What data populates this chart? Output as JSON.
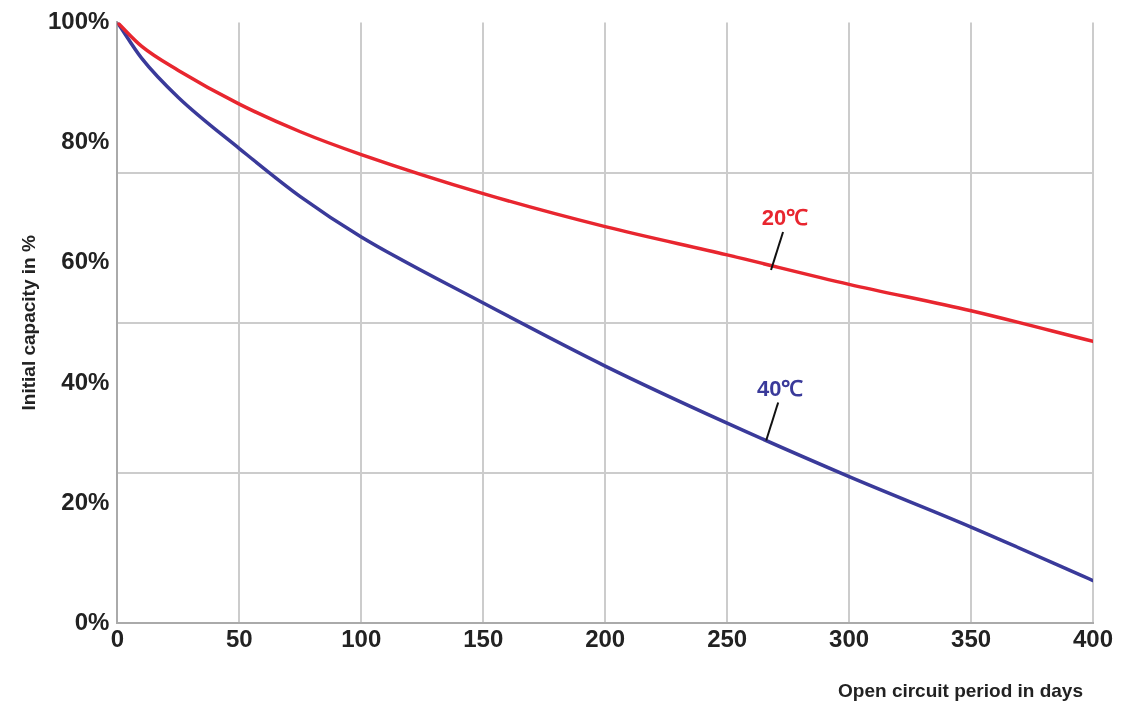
{
  "chart_data": {
    "type": "line",
    "xlabel": "Open circuit period in days",
    "ylabel": "Initial capacity in %",
    "xlim": [
      0,
      400
    ],
    "xticks": [
      0,
      50,
      100,
      150,
      200,
      250,
      300,
      350,
      400
    ],
    "ylim": [
      0,
      100
    ],
    "yticks": [
      {
        "value": 0,
        "label": "0%"
      },
      {
        "value": 20,
        "label": "20%"
      },
      {
        "value": 25,
        "label": null
      },
      {
        "value": 40,
        "label": "40%"
      },
      {
        "value": 50,
        "label": null
      },
      {
        "value": 60,
        "label": "60%"
      },
      {
        "value": 75,
        "label": null
      },
      {
        "value": 80,
        "label": "80%"
      },
      {
        "value": 100,
        "label": "100%"
      }
    ],
    "grid": true,
    "marker": "none",
    "line_style": "solid",
    "series": [
      {
        "color": "#e8262f",
        "x": [
          0,
          10,
          25,
          50,
          75,
          100,
          150,
          200,
          250,
          300,
          350,
          400
        ],
        "values": [
          100,
          96,
          92,
          86.4,
          81.8,
          78,
          71.5,
          66,
          61.3,
          56.4,
          52,
          46.9
        ]
      },
      {
        "color": "#3a3a9a",
        "x": [
          0,
          10,
          25,
          50,
          75,
          100,
          150,
          200,
          250,
          300,
          350,
          400
        ],
        "values": [
          100,
          94,
          87.5,
          79,
          71,
          64.3,
          53.3,
          42.8,
          33.3,
          24.4,
          16,
          7.1
        ]
      }
    ],
    "annotations": [
      {
        "text": "20℃",
        "x": 268,
        "y": 58.8
      },
      {
        "text": "40℃",
        "x": 266,
        "y": 30.4
      }
    ]
  }
}
